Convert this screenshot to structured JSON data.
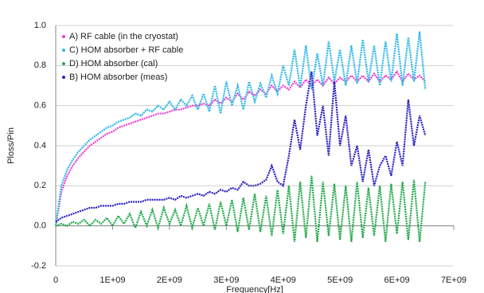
{
  "chart_data": {
    "type": "line",
    "x_label": "Frequency[Hz]",
    "y_label": "Ploss/Pin",
    "x": [
      0,
      100000000,
      200000000,
      300000000,
      400000000,
      500000000,
      600000000,
      700000000,
      800000000,
      900000000,
      1000000000,
      1100000000,
      1200000000,
      1300000000,
      1400000000,
      1500000000,
      1600000000,
      1700000000,
      1800000000,
      1900000000,
      2000000000,
      2100000000,
      2200000000,
      2300000000,
      2400000000,
      2500000000,
      2600000000,
      2700000000,
      2800000000,
      2900000000,
      3000000000,
      3100000000,
      3200000000,
      3300000000,
      3400000000,
      3500000000,
      3600000000,
      3700000000,
      3800000000,
      3900000000,
      4000000000,
      4100000000,
      4200000000,
      4300000000,
      4400000000,
      4500000000,
      4600000000,
      4700000000,
      4800000000,
      4900000000,
      5000000000,
      5100000000,
      5200000000,
      5300000000,
      5400000000,
      5500000000,
      5600000000,
      5700000000,
      5800000000,
      5900000000,
      6000000000,
      6100000000,
      6200000000,
      6300000000,
      6400000000,
      6500000000
    ],
    "series": [
      {
        "name": "A) RF cable (in the cryostat)",
        "color": "#f03cd2",
        "values": [
          0.0,
          0.17,
          0.25,
          0.3,
          0.34,
          0.37,
          0.4,
          0.42,
          0.44,
          0.46,
          0.47,
          0.49,
          0.5,
          0.51,
          0.52,
          0.53,
          0.54,
          0.55,
          0.56,
          0.56,
          0.57,
          0.58,
          0.58,
          0.59,
          0.6,
          0.6,
          0.61,
          0.6,
          0.63,
          0.61,
          0.64,
          0.62,
          0.66,
          0.63,
          0.67,
          0.65,
          0.68,
          0.66,
          0.7,
          0.67,
          0.7,
          0.68,
          0.72,
          0.69,
          0.73,
          0.7,
          0.73,
          0.7,
          0.74,
          0.71,
          0.74,
          0.72,
          0.75,
          0.72,
          0.75,
          0.72,
          0.76,
          0.72,
          0.75,
          0.73,
          0.77,
          0.72,
          0.76,
          0.73,
          0.75,
          0.72
        ]
      },
      {
        "name": "C) HOM absorber + RF cable",
        "color": "#2eb8ea",
        "values": [
          0.0,
          0.2,
          0.28,
          0.33,
          0.37,
          0.4,
          0.43,
          0.45,
          0.47,
          0.49,
          0.5,
          0.52,
          0.53,
          0.54,
          0.56,
          0.55,
          0.58,
          0.57,
          0.6,
          0.58,
          0.62,
          0.58,
          0.63,
          0.6,
          0.65,
          0.58,
          0.66,
          0.57,
          0.7,
          0.56,
          0.72,
          0.6,
          0.7,
          0.58,
          0.72,
          0.62,
          0.71,
          0.64,
          0.75,
          0.66,
          0.8,
          0.7,
          0.88,
          0.69,
          0.9,
          0.68,
          0.86,
          0.7,
          0.92,
          0.72,
          0.88,
          0.7,
          0.9,
          0.71,
          0.93,
          0.72,
          0.9,
          0.7,
          0.92,
          0.72,
          0.96,
          0.7,
          0.94,
          0.72,
          0.97,
          0.68
        ]
      },
      {
        "name": "D) HOM absorber (cal)",
        "color": "#22aa4a",
        "values": [
          0.0,
          0.01,
          0.0,
          0.02,
          0.01,
          0.03,
          0.0,
          0.03,
          0.01,
          0.04,
          0.0,
          0.05,
          0.01,
          0.06,
          -0.01,
          0.07,
          0.0,
          0.08,
          -0.01,
          0.09,
          0.01,
          0.08,
          0.0,
          0.1,
          -0.01,
          0.09,
          0.0,
          0.11,
          -0.02,
          0.12,
          0.0,
          0.13,
          -0.03,
          0.14,
          -0.02,
          0.16,
          -0.03,
          0.15,
          -0.05,
          0.18,
          -0.04,
          0.2,
          -0.08,
          0.22,
          -0.06,
          0.25,
          -0.08,
          0.22,
          -0.05,
          0.21,
          -0.07,
          0.2,
          -0.08,
          0.22,
          -0.06,
          0.19,
          -0.05,
          0.2,
          -0.08,
          0.21,
          -0.04,
          0.22,
          -0.07,
          0.23,
          -0.08,
          0.22
        ]
      },
      {
        "name": "B) HOM absorber (meas)",
        "color": "#2a1fc0",
        "values": [
          0.02,
          0.04,
          0.05,
          0.06,
          0.07,
          0.08,
          0.09,
          0.09,
          0.1,
          0.1,
          0.1,
          0.11,
          0.11,
          0.12,
          0.12,
          0.12,
          0.13,
          0.13,
          0.13,
          0.13,
          0.14,
          0.13,
          0.15,
          0.14,
          0.15,
          0.16,
          0.15,
          0.17,
          0.16,
          0.18,
          0.17,
          0.19,
          0.18,
          0.22,
          0.2,
          0.2,
          0.21,
          0.23,
          0.3,
          0.22,
          0.2,
          0.35,
          0.53,
          0.38,
          0.6,
          0.77,
          0.45,
          0.6,
          0.35,
          0.72,
          0.4,
          0.55,
          0.3,
          0.4,
          0.22,
          0.38,
          0.2,
          0.3,
          0.35,
          0.25,
          0.42,
          0.3,
          0.63,
          0.4,
          0.55,
          0.45
        ]
      }
    ],
    "xlim": [
      0,
      7000000000
    ],
    "xticks": [
      0,
      {
        "value": 1000000000,
        "label": "1E+09"
      },
      {
        "value": 2000000000,
        "label": "2E+09"
      },
      {
        "value": 3000000000,
        "label": "3E+09"
      },
      {
        "value": 4000000000,
        "label": "4E+09"
      },
      {
        "value": 5000000000,
        "label": "5E+09"
      },
      {
        "value": 6000000000,
        "label": "6E+09"
      },
      {
        "value": 7000000000,
        "label": "7E+09"
      }
    ],
    "ylim": [
      -0.2,
      1.0
    ],
    "yticks": [
      -0.2,
      {
        "value": 0,
        "label": "0.0"
      },
      0.2,
      0.4,
      0.6,
      0.8,
      {
        "value": 1,
        "label": "1.0"
      }
    ],
    "grid": true,
    "legend": "upper left"
  }
}
